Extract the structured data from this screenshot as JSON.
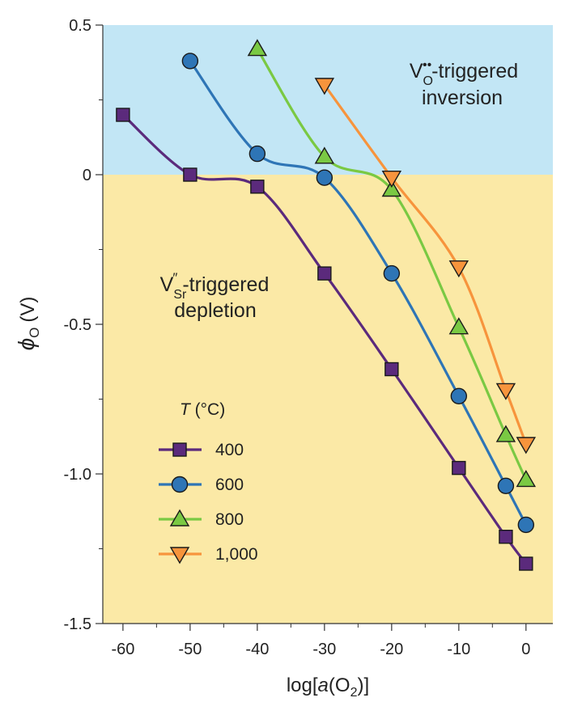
{
  "chart_data": {
    "type": "line",
    "title": "",
    "xlabel": {
      "prefix": "log[",
      "italic": "a",
      "mid": "(O",
      "sub": "2",
      "suffix": ")]"
    },
    "ylabel": {
      "symbol": "ϕ",
      "sub": "O",
      "unit": "(V)"
    },
    "xlim": [
      -63,
      4
    ],
    "ylim": [
      -1.5,
      0.5
    ],
    "xticks": [
      -60,
      -50,
      -40,
      -30,
      -20,
      -10,
      0
    ],
    "xtick_labels": [
      "-60",
      "-50",
      "-40",
      "-30",
      "-20",
      "-10",
      "0"
    ],
    "yticks": [
      0.5,
      0,
      -0.5,
      -1.0,
      -1.5
    ],
    "ytick_labels": [
      "0.5",
      "0",
      "-0.5",
      "-1.0",
      "-1.5"
    ],
    "regions": {
      "positive": {
        "color": "#c2e6f5",
        "label_main": "V",
        "label_sub": "O",
        "label_sup": "••",
        "label_rest": "-triggered",
        "label_line2": "inversion"
      },
      "negative": {
        "color": "#fbe9a6",
        "label_main": "V",
        "label_sub": "Sr",
        "label_sup": "″",
        "label_rest": "-triggered",
        "label_line2": "depletion"
      }
    },
    "legend_title": {
      "italic": "T",
      "rest": " (°C)"
    },
    "series": [
      {
        "name": "400",
        "color": "#5b2a7c",
        "marker": "square",
        "x": [
          -60,
          -50,
          -40,
          -30,
          -20,
          -10,
          -3,
          0
        ],
        "y": [
          0.2,
          0.0,
          -0.04,
          -0.33,
          -0.65,
          -0.98,
          -1.21,
          -1.3
        ]
      },
      {
        "name": "600",
        "color": "#2e75b6",
        "marker": "circle",
        "x": [
          -50,
          -40,
          -30,
          -20,
          -10,
          -3,
          0
        ],
        "y": [
          0.38,
          0.07,
          -0.01,
          -0.33,
          -0.74,
          -1.04,
          -1.17
        ]
      },
      {
        "name": "800",
        "color": "#7ac943",
        "marker": "triangle-up",
        "x": [
          -40,
          -30,
          -20,
          -10,
          -3,
          0
        ],
        "y": [
          0.42,
          0.06,
          -0.05,
          -0.51,
          -0.87,
          -1.02
        ]
      },
      {
        "name": "1,000",
        "color": "#f7943c",
        "marker": "triangle-down",
        "x": [
          -30,
          -20,
          -10,
          -3,
          0
        ],
        "y": [
          0.3,
          -0.01,
          -0.31,
          -0.72,
          -0.9
        ]
      }
    ]
  }
}
